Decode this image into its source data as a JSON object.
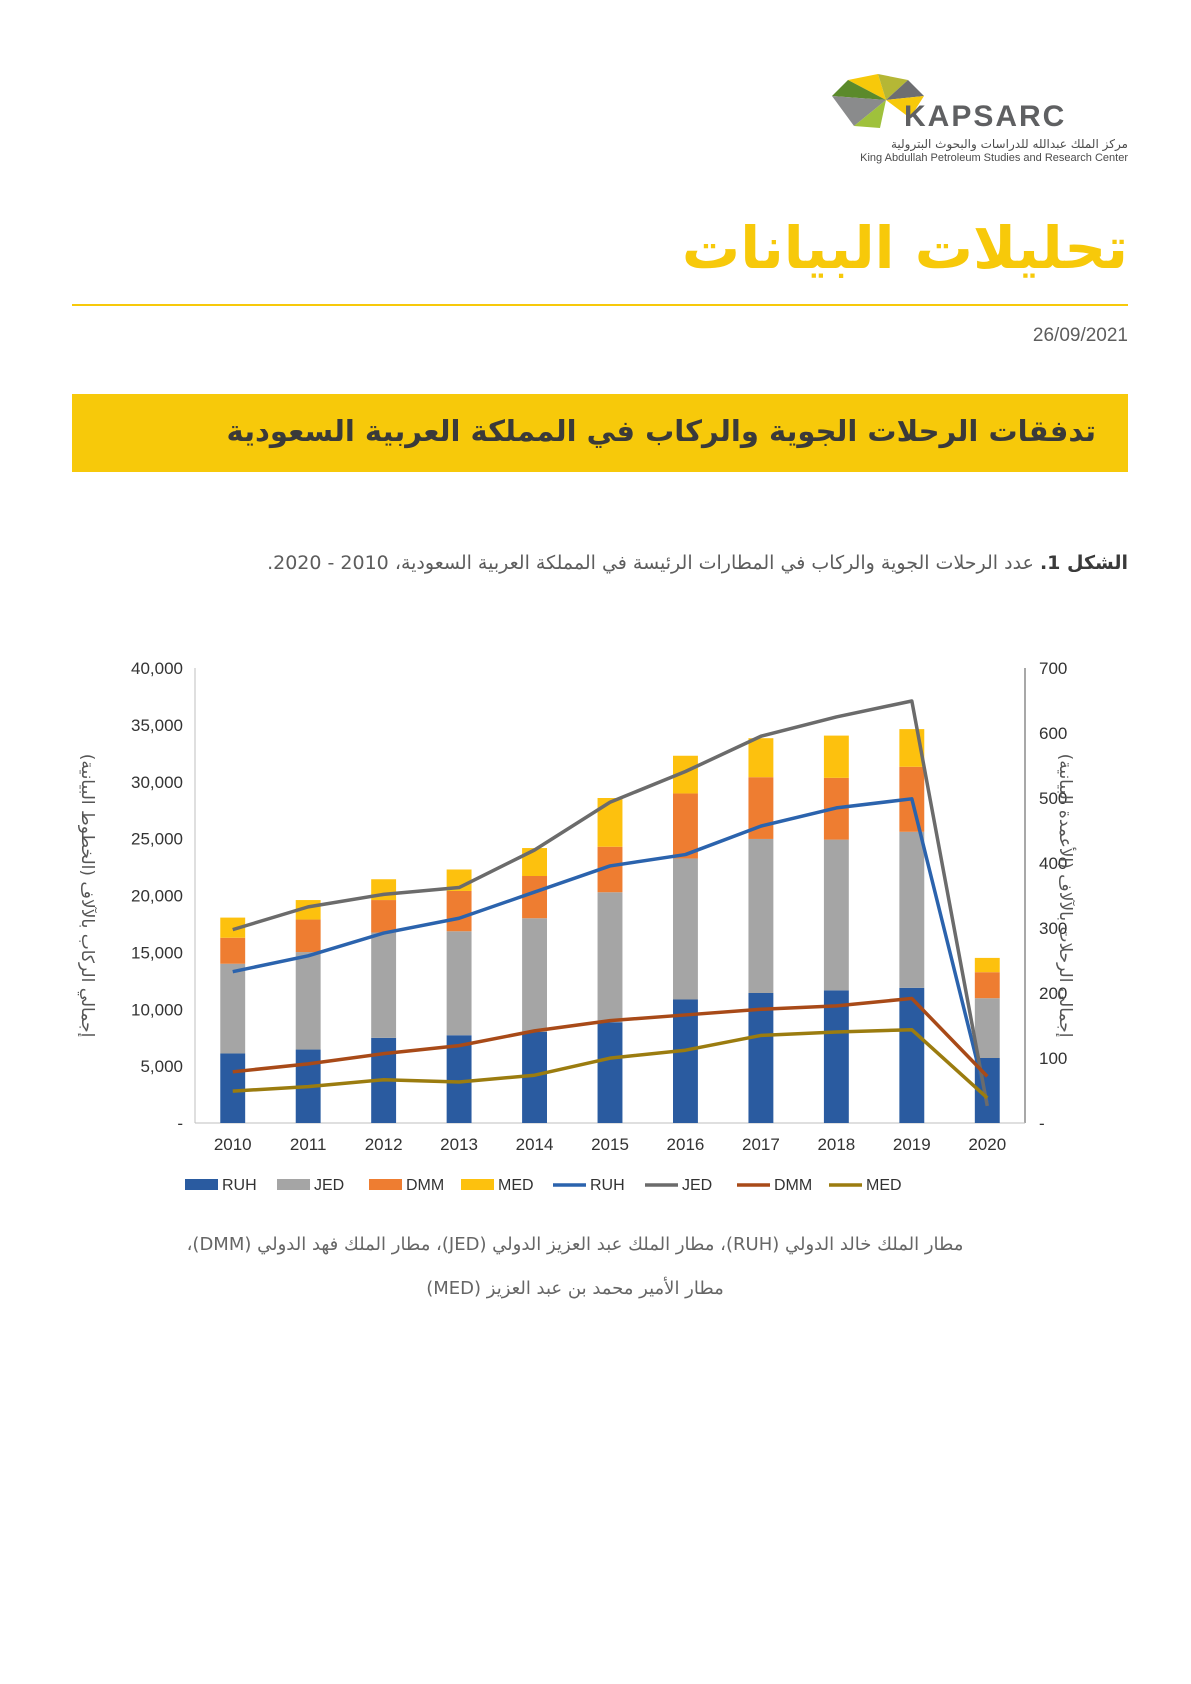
{
  "header": {
    "logo_text": "KAPSARC",
    "logo_ar": "مركز الملك عبدالله للدراسات والبحوث البترولية",
    "logo_en": "King Abdullah Petroleum Studies and Research Center",
    "page_title": "تحليلات البيانات",
    "date": "26/09/2021"
  },
  "banner": {
    "title": "تدفقات الرحلات الجوية والركاب في المملكة العربية السعودية"
  },
  "caption": {
    "label": "الشكل 1.",
    "text": " عدد الرحلات الجوية والركاب في المطارات الرئيسة في المملكة العربية السعودية، 2010 - 2020."
  },
  "source": {
    "line1": "مطار الملك خالد الدولي (RUH)، مطار الملك عبد العزيز الدولي (JED)، مطار الملك فهد الدولي (DMM)،",
    "line2": "مطار الأمير محمد بن عبد العزيز (MED)"
  },
  "colors": {
    "brand": "#f7c90a",
    "RUH": "#2a5ba0",
    "JED": "#a5a5a5",
    "DMM": "#ee7d31",
    "MED": "#fdc10e",
    "RUH_line": "#2b63ad",
    "JED_line": "#6b6b6b",
    "DMM_line": "#a84a18",
    "MED_line": "#9b7c0f"
  },
  "chart_data": {
    "type": "bar",
    "categories": [
      "2010",
      "2011",
      "2012",
      "2013",
      "2014",
      "2015",
      "2016",
      "2017",
      "2018",
      "2019",
      "2020"
    ],
    "bar_axis": {
      "label": "إجمالي الرحلات بالآلاف (الأعمدة البيانية)",
      "ylim": [
        0,
        700
      ],
      "ticks": [
        "-",
        "100",
        "200",
        "300",
        "400",
        "500",
        "600",
        "700"
      ],
      "side": "right"
    },
    "line_axis": {
      "label": "إجمالي الركاب بالآلاف (الخطوط البيانية)",
      "ylim": [
        0,
        40000
      ],
      "ticks": [
        "-",
        "5,000",
        "10,000",
        "15,000",
        "20,000",
        "25,000",
        "30,000",
        "35,000",
        "40,000"
      ],
      "side": "left"
    },
    "bar_series": [
      {
        "name": "RUH",
        "values": [
          107,
          113,
          131,
          135,
          140,
          155,
          190,
          200,
          204,
          208,
          100
        ]
      },
      {
        "name": "JED",
        "values": [
          138,
          150,
          162,
          160,
          175,
          200,
          217,
          237,
          232,
          240,
          92
        ]
      },
      {
        "name": "DMM",
        "values": [
          40,
          50,
          50,
          62,
          65,
          70,
          100,
          95,
          95,
          100,
          40
        ]
      },
      {
        "name": "MED",
        "values": [
          31,
          30,
          32,
          33,
          43,
          75,
          58,
          60,
          65,
          58,
          22
        ]
      }
    ],
    "line_series": [
      {
        "name": "RUH",
        "values": [
          13300,
          14700,
          16700,
          18000,
          20300,
          22600,
          23600,
          26100,
          27700,
          28500,
          1800
        ]
      },
      {
        "name": "JED",
        "values": [
          17000,
          19000,
          20100,
          20700,
          24000,
          28200,
          30900,
          34000,
          35700,
          37100,
          1500
        ]
      },
      {
        "name": "DMM",
        "values": [
          4500,
          5200,
          6100,
          6800,
          8100,
          9000,
          9500,
          10000,
          10300,
          10950,
          4100
        ]
      },
      {
        "name": "MED",
        "values": [
          2800,
          3200,
          3800,
          3600,
          4200,
          5700,
          6400,
          7700,
          8000,
          8200,
          2200
        ]
      }
    ],
    "legend": [
      "RUH",
      "JED",
      "DMM",
      "MED",
      "RUH",
      "JED",
      "DMM",
      "MED"
    ],
    "legend_position": "bottom",
    "grid": false
  }
}
